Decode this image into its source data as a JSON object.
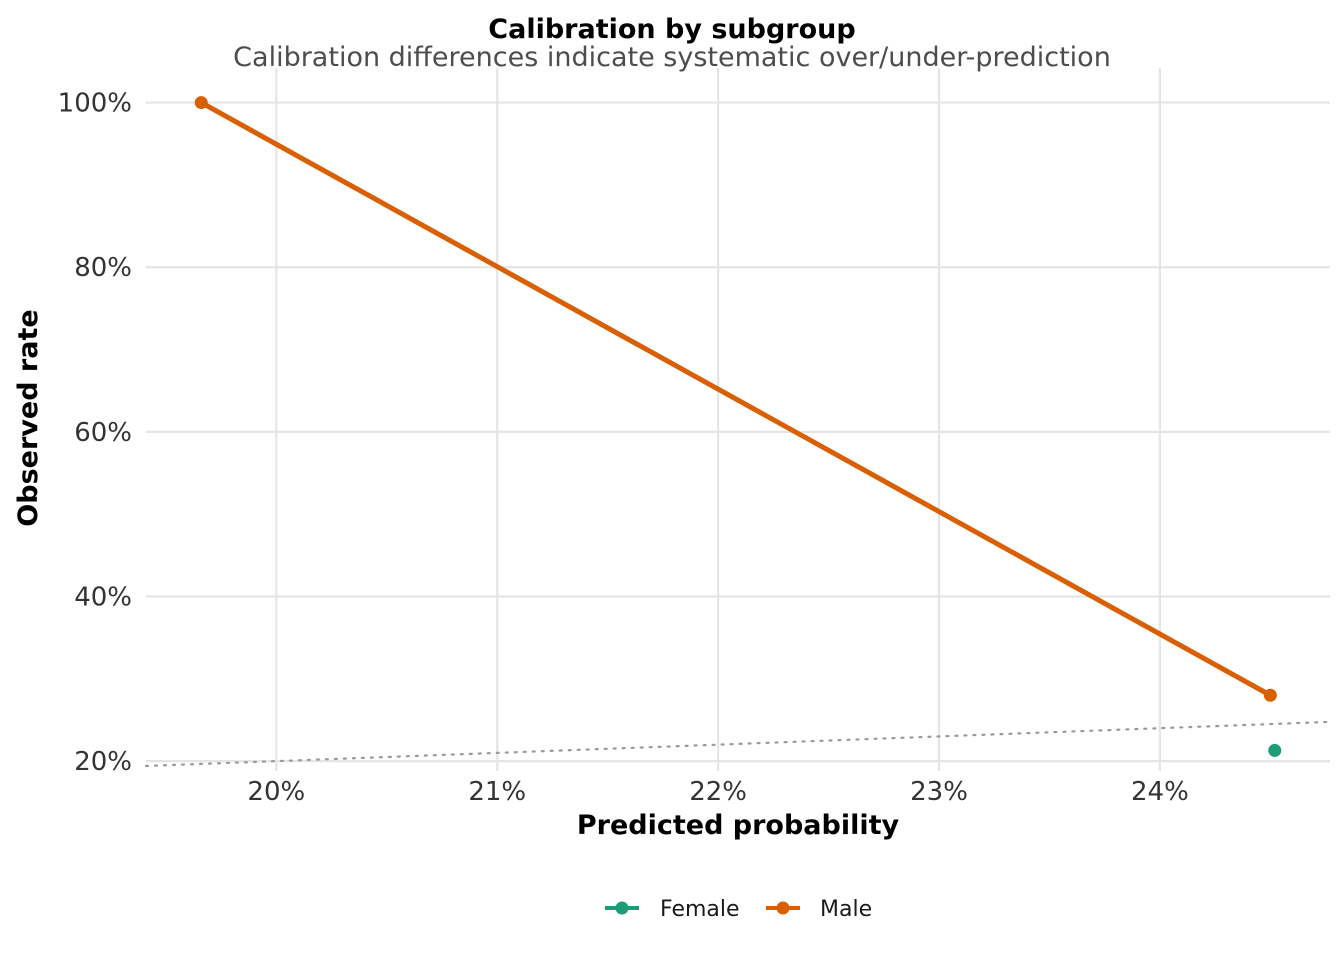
{
  "chart_data": {
    "type": "line",
    "title": "Calibration by subgroup",
    "subtitle": "Calibration differences indicate systematic over/under-prediction",
    "xlabel": "Predicted probability",
    "ylabel": "Observed rate",
    "xlim": [
      0.1941,
      0.2477
    ],
    "ylim": [
      0.188,
      1.042
    ],
    "x_ticks": [
      0.2,
      0.21,
      0.22,
      0.23,
      0.24
    ],
    "x_tick_labels": [
      "20%",
      "21%",
      "22%",
      "23%",
      "24%"
    ],
    "y_ticks": [
      0.2,
      0.4,
      0.6,
      0.8,
      1.0
    ],
    "y_tick_labels": [
      "20%",
      "40%",
      "60%",
      "80%",
      "100%"
    ],
    "grid": true,
    "legend_position": "bottom",
    "reference_line": {
      "style": "dotted",
      "color": "#999999",
      "description": "y = x"
    },
    "series": [
      {
        "name": "Female",
        "color": "#1b9e77",
        "x": [
          0.2452
        ],
        "y": [
          0.213
        ]
      },
      {
        "name": "Male",
        "color": "#d95f02",
        "x": [
          0.1966,
          0.245
        ],
        "y": [
          1.0,
          0.28
        ]
      }
    ]
  }
}
